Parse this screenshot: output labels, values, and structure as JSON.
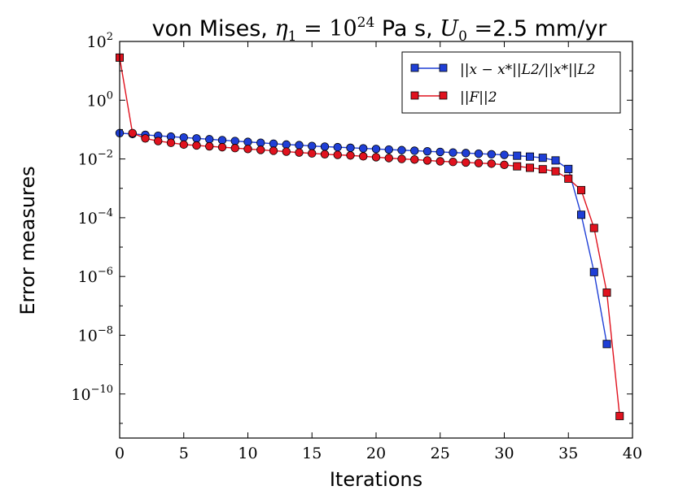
{
  "chart_data": {
    "type": "line",
    "title": {
      "prefix": "von Mises, ",
      "eta_symbol": "η",
      "eta_sub": "1",
      "eq1": " = 10",
      "eta_exp": "24",
      "pas": " Pa s, ",
      "u_symbol": "U",
      "u_sub": "0",
      "eq2": " =",
      "suffix": "2.5 mm/yr"
    },
    "xlabel": "Iterations",
    "ylabel": "Error measures",
    "xlim": [
      0,
      40
    ],
    "ylim_log10": [
      -11.5,
      2
    ],
    "xticks": [
      "0",
      "5",
      "10",
      "15",
      "20",
      "25",
      "30",
      "35",
      "40"
    ],
    "yticks": [
      {
        "base": "10",
        "exp": "2"
      },
      {
        "base": "10",
        "exp": "0"
      },
      {
        "base": "10",
        "exp": "−2"
      },
      {
        "base": "10",
        "exp": "−4"
      },
      {
        "base": "10",
        "exp": "−6"
      },
      {
        "base": "10",
        "exp": "−8"
      },
      {
        "base": "10",
        "exp": "−10"
      }
    ],
    "legend_position": "top-right",
    "series": [
      {
        "name": "||x − x*||L2 / ||x*||L2",
        "legend_text": "||x − x*||L2/||x*||L2",
        "color": "#1f3fd6",
        "marker": "circle, square after iteration 30",
        "x": [
          0,
          1,
          2,
          3,
          4,
          5,
          6,
          7,
          8,
          9,
          10,
          11,
          12,
          13,
          14,
          15,
          16,
          17,
          18,
          19,
          20,
          21,
          22,
          23,
          24,
          25,
          26,
          27,
          28,
          29,
          30,
          31,
          32,
          33,
          34,
          35,
          36,
          37,
          38
        ],
        "log10_values": [
          -1.12,
          -1.15,
          -1.18,
          -1.21,
          -1.24,
          -1.27,
          -1.3,
          -1.33,
          -1.36,
          -1.39,
          -1.42,
          -1.45,
          -1.48,
          -1.51,
          -1.53,
          -1.56,
          -1.58,
          -1.6,
          -1.62,
          -1.64,
          -1.66,
          -1.68,
          -1.7,
          -1.72,
          -1.74,
          -1.76,
          -1.78,
          -1.8,
          -1.82,
          -1.84,
          -1.86,
          -1.89,
          -1.92,
          -1.96,
          -2.05,
          -2.34,
          -3.9,
          -5.85,
          -8.3
        ]
      },
      {
        "name": "||F||2",
        "legend_text": "||F||2",
        "color": "#e0121e",
        "marker": "circle, square after iteration 30",
        "x": [
          0,
          1,
          2,
          3,
          4,
          5,
          6,
          7,
          8,
          9,
          10,
          11,
          12,
          13,
          14,
          15,
          16,
          17,
          18,
          19,
          20,
          21,
          22,
          23,
          24,
          25,
          26,
          27,
          28,
          29,
          30,
          31,
          32,
          33,
          34,
          35,
          36,
          37,
          38,
          39
        ],
        "log10_values": [
          1.45,
          -1.12,
          -1.3,
          -1.39,
          -1.45,
          -1.51,
          -1.54,
          -1.57,
          -1.6,
          -1.63,
          -1.66,
          -1.69,
          -1.72,
          -1.75,
          -1.78,
          -1.81,
          -1.84,
          -1.86,
          -1.88,
          -1.91,
          -1.94,
          -1.97,
          -2.0,
          -2.02,
          -2.05,
          -2.08,
          -2.1,
          -2.12,
          -2.14,
          -2.16,
          -2.2,
          -2.25,
          -2.3,
          -2.35,
          -2.42,
          -2.67,
          -3.06,
          -4.35,
          -6.55,
          -10.75
        ]
      }
    ]
  }
}
